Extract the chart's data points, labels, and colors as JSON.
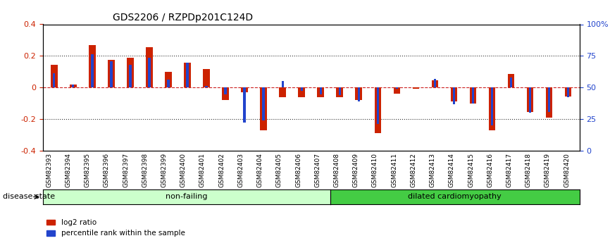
{
  "title": "GDS2206 / RZPDp201C124D",
  "categories": [
    "GSM82393",
    "GSM82394",
    "GSM82395",
    "GSM82396",
    "GSM82397",
    "GSM82398",
    "GSM82399",
    "GSM82400",
    "GSM82401",
    "GSM82402",
    "GSM82403",
    "GSM82404",
    "GSM82405",
    "GSM82406",
    "GSM82407",
    "GSM82408",
    "GSM82409",
    "GSM82410",
    "GSM82411",
    "GSM82412",
    "GSM82413",
    "GSM82414",
    "GSM82415",
    "GSM82416",
    "GSM82417",
    "GSM82418",
    "GSM82419",
    "GSM82420"
  ],
  "log2_ratio": [
    0.145,
    0.02,
    0.27,
    0.175,
    0.19,
    0.255,
    0.1,
    0.155,
    0.115,
    -0.08,
    -0.03,
    -0.27,
    -0.06,
    -0.06,
    -0.06,
    -0.06,
    -0.08,
    -0.29,
    -0.04,
    -0.01,
    0.045,
    -0.09,
    -0.1,
    -0.27,
    0.085,
    -0.155,
    -0.19,
    -0.055
  ],
  "percentile_rank": [
    0.09,
    0.02,
    0.21,
    0.165,
    0.145,
    0.19,
    0.05,
    0.155,
    0.01,
    -0.045,
    -0.22,
    -0.21,
    0.04,
    -0.02,
    -0.045,
    -0.05,
    -0.09,
    -0.23,
    -0.01,
    0.0,
    0.055,
    -0.105,
    -0.1,
    -0.24,
    0.065,
    -0.16,
    -0.155,
    -0.06
  ],
  "non_failing_count": 15,
  "ylim": [
    -0.4,
    0.4
  ],
  "y2lim": [
    0,
    100
  ],
  "bar_color": "#cc2200",
  "blue_color": "#2244cc",
  "non_failing_color": "#ccffcc",
  "dilated_color": "#44cc44",
  "non_failing_label": "non-failing",
  "dilated_label": "dilated cardiomyopathy",
  "disease_state_label": "disease state",
  "legend_red": "log2 ratio",
  "legend_blue": "percentile rank within the sample",
  "hline_color": "#cc2222",
  "grid_color": "#333333"
}
